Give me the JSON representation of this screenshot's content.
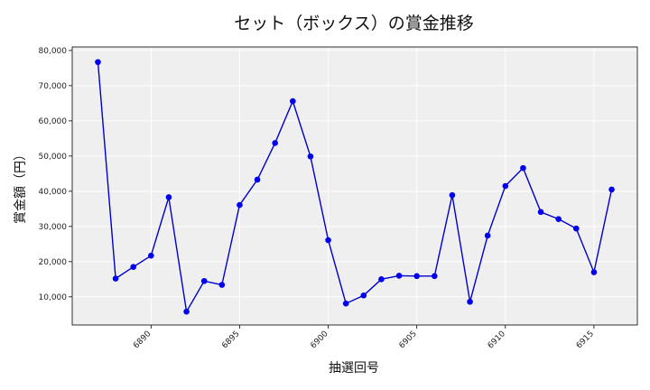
{
  "chart_data": {
    "type": "line",
    "title": "セット（ボックス）の賞金推移",
    "xlabel": "抽選回号",
    "ylabel": "賞金額（円）",
    "xlim": [
      6885.55,
      6917.45
    ],
    "ylim": [
      2000,
      81000
    ],
    "xticks": [
      6890,
      6895,
      6900,
      6905,
      6910,
      6915
    ],
    "xtick_labels": [
      "6890",
      "6895",
      "6900",
      "6905",
      "6910",
      "6915"
    ],
    "yticks": [
      10000,
      20000,
      30000,
      40000,
      50000,
      60000,
      70000,
      80000
    ],
    "ytick_labels": [
      "10,000",
      "20,000",
      "30,000",
      "40,000",
      "50,000",
      "60,000",
      "70,000",
      "80,000"
    ],
    "grid": true,
    "colors": {
      "line": "#0000cc",
      "marker": "#0000ee",
      "plot_bg": "#efefef",
      "grid": "#ffffff"
    },
    "x": [
      6887,
      6888,
      6889,
      6890,
      6891,
      6892,
      6893,
      6894,
      6895,
      6896,
      6897,
      6898,
      6899,
      6900,
      6901,
      6902,
      6903,
      6904,
      6905,
      6906,
      6907,
      6908,
      6909,
      6910,
      6911,
      6912,
      6913,
      6914,
      6915,
      6916
    ],
    "values": [
      76700,
      15200,
      18500,
      21700,
      38300,
      5800,
      14500,
      13400,
      36100,
      43300,
      53700,
      65600,
      49900,
      26100,
      8100,
      10400,
      15000,
      16000,
      15900,
      15900,
      38900,
      8600,
      27400,
      41500,
      46600,
      34100,
      32100,
      29400,
      17000,
      40500
    ]
  }
}
